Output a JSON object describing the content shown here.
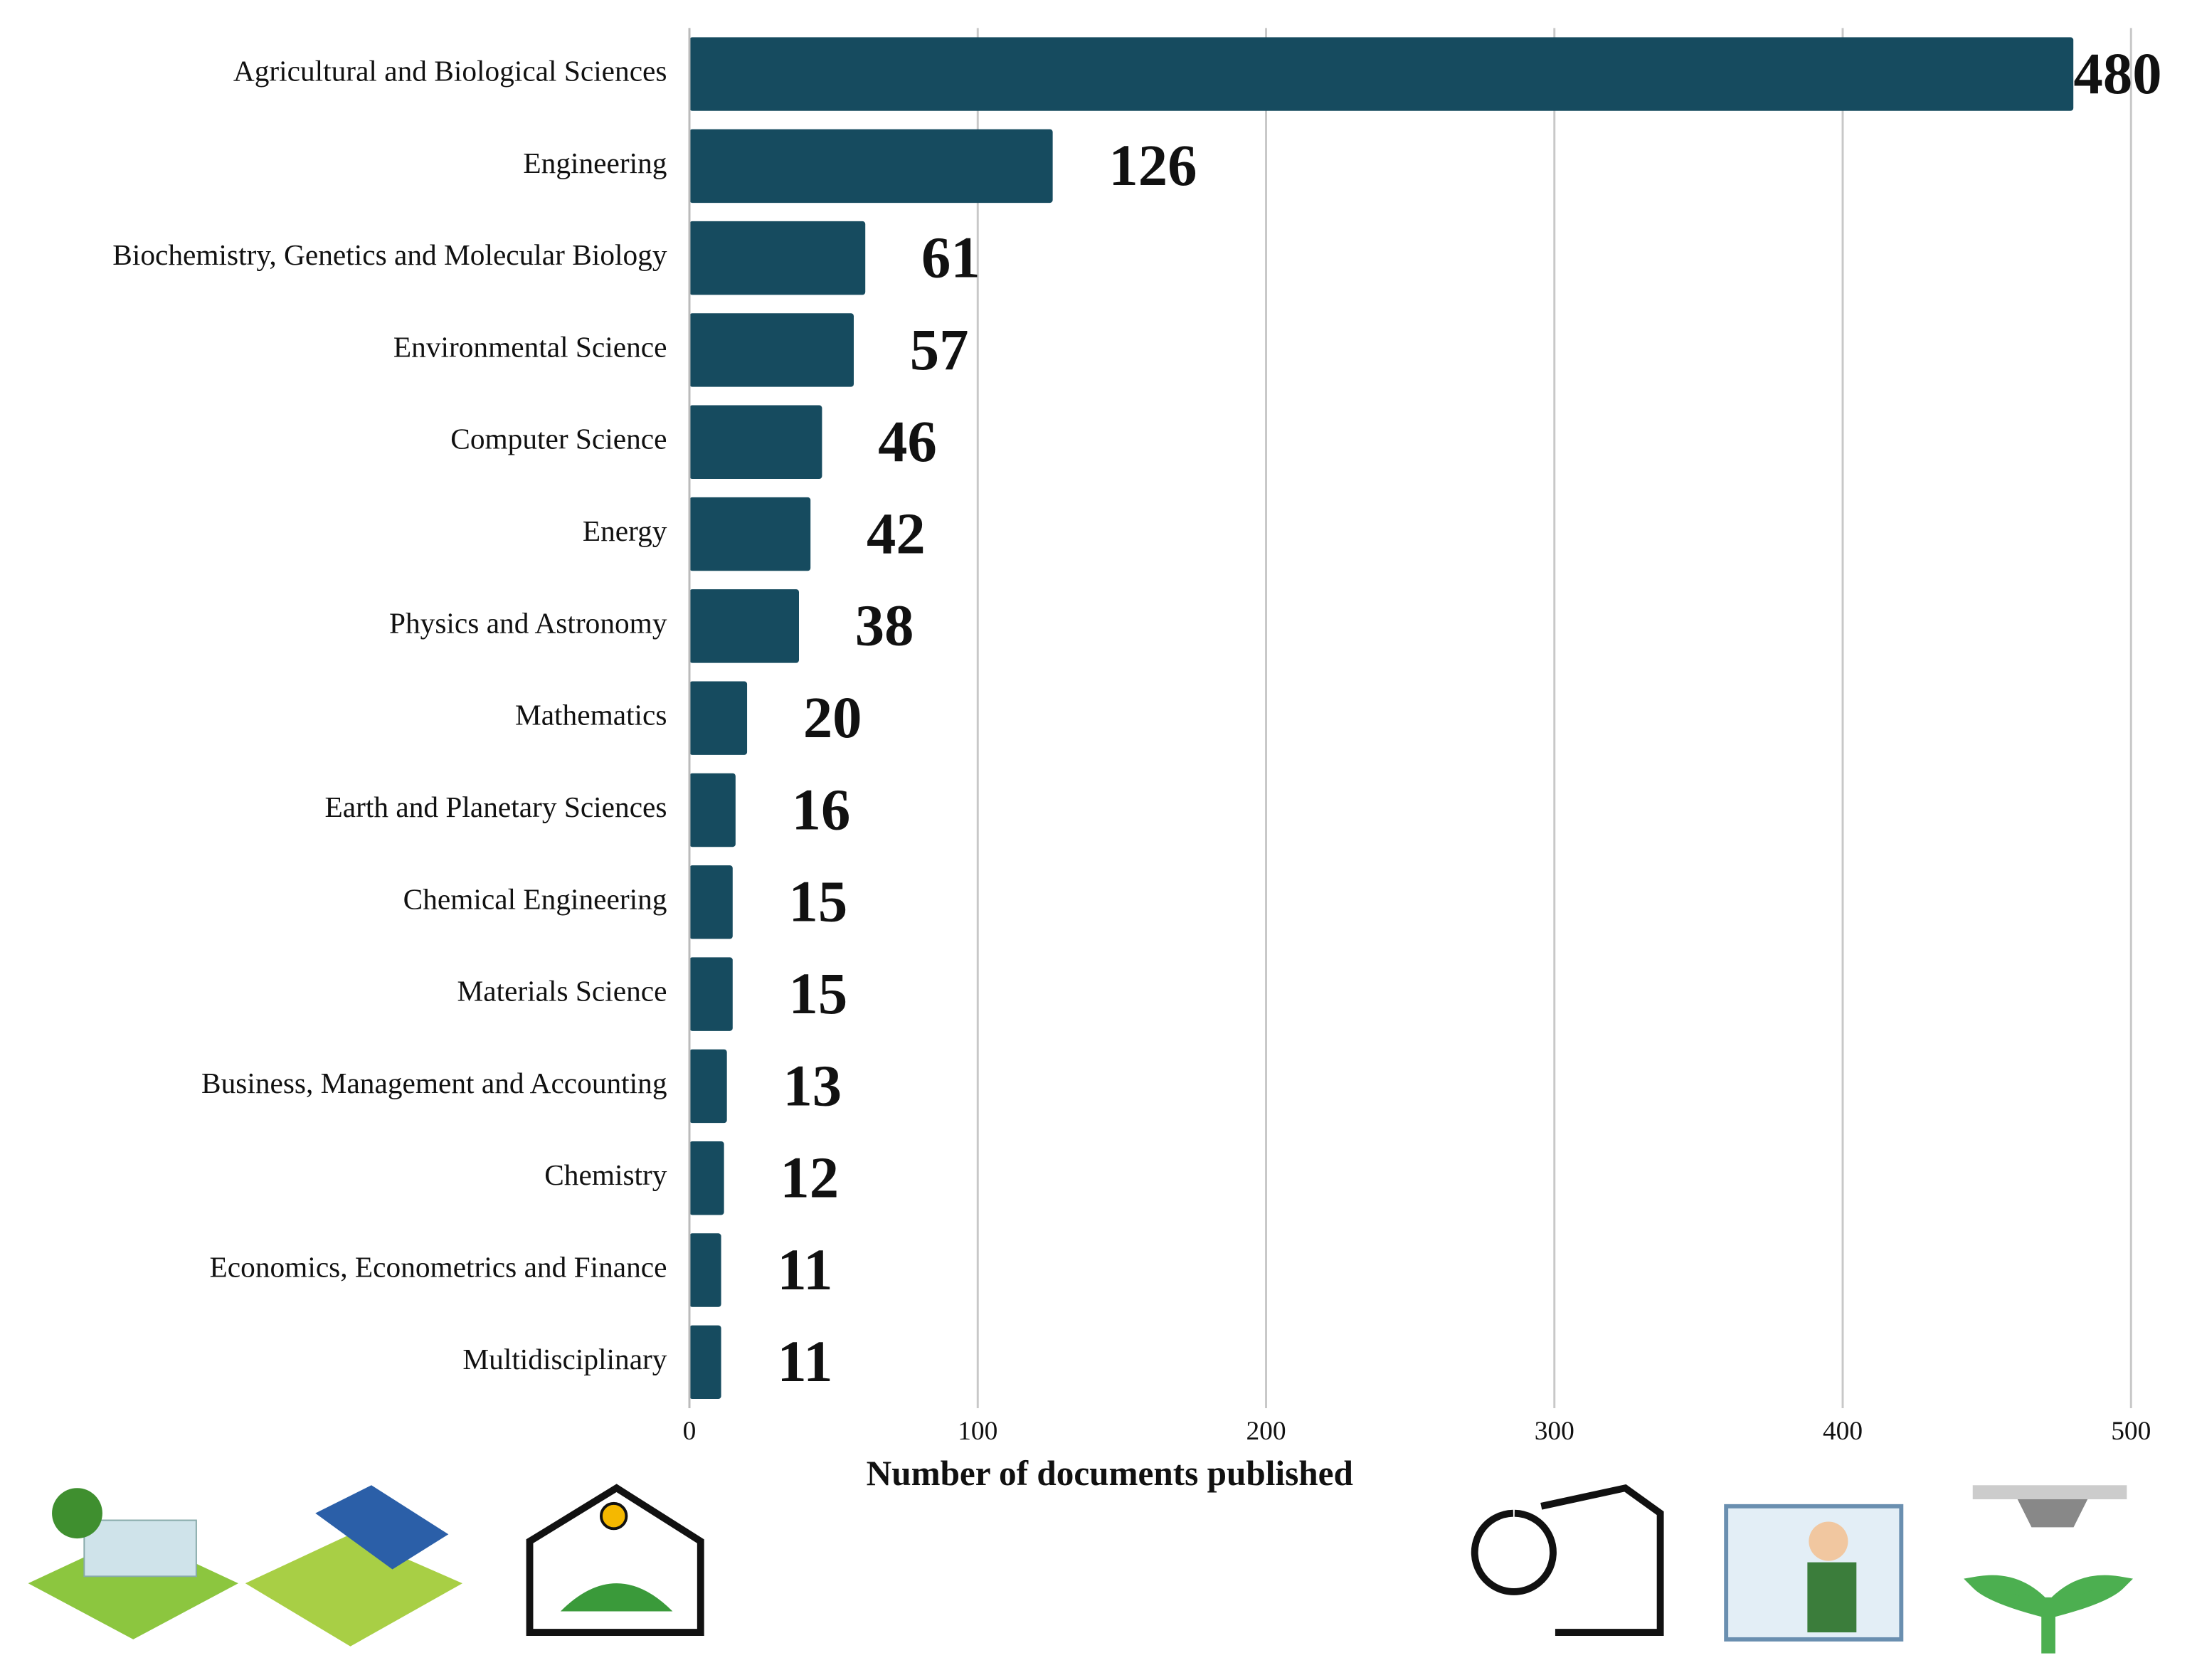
{
  "chart_data": {
    "type": "bar",
    "orientation": "horizontal",
    "categories": [
      "Agricultural and Biological Sciences",
      "Engineering",
      "Biochemistry, Genetics and Molecular Biology",
      "Environmental Science",
      "Computer Science",
      "Energy",
      "Physics and Astronomy",
      "Mathematics",
      "Earth and Planetary Sciences",
      "Chemical Engineering",
      "Materials Science",
      "Business, Management and Accounting",
      "Chemistry",
      "Economics, Econometrics and Finance",
      "Multidisciplinary"
    ],
    "values": [
      480,
      126,
      61,
      57,
      46,
      42,
      38,
      20,
      16,
      15,
      15,
      13,
      12,
      11,
      11
    ],
    "color": "#164b5f",
    "xlabel": "Number of documents published",
    "xlim": [
      0,
      500
    ],
    "xticks": [
      0,
      100,
      200,
      300,
      400,
      500
    ],
    "grid": true
  }
}
